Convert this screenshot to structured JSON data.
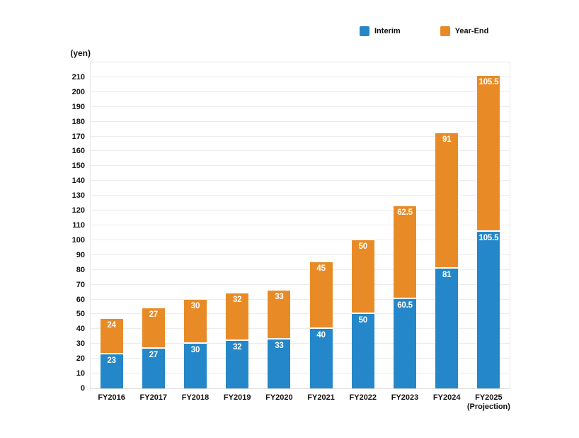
{
  "chart_data": {
    "type": "bar",
    "stacked": true,
    "title": "",
    "unit_label": "(yen)",
    "legend_position": "top",
    "grid": true,
    "categories": [
      [
        "FY2016"
      ],
      [
        "FY2017"
      ],
      [
        "FY2018"
      ],
      [
        "FY2019"
      ],
      [
        "FY2020"
      ],
      [
        "FY2021"
      ],
      [
        "FY2022"
      ],
      [
        "FY2023"
      ],
      [
        "FY2024"
      ],
      [
        "FY2025",
        "(Projection)"
      ]
    ],
    "series": [
      {
        "name": "Interim",
        "color": "#2487c9",
        "values": [
          23,
          27,
          30,
          32,
          33,
          40,
          50,
          60.5,
          81,
          105.5
        ]
      },
      {
        "name": "Year-End",
        "color": "#e88b27",
        "values": [
          24,
          27,
          30,
          32,
          33,
          45,
          50,
          62.5,
          91,
          105.5
        ]
      }
    ],
    "y_axis": {
      "min": 0,
      "max": 220,
      "tick_step": 10,
      "last_labeled_tick": 210
    },
    "bar_label_color": "#ffffff"
  },
  "colors": {
    "interim": "#2487c9",
    "year_end": "#e88b27",
    "gridline": "#ececec",
    "text": "#111111",
    "background": "#ffffff"
  }
}
